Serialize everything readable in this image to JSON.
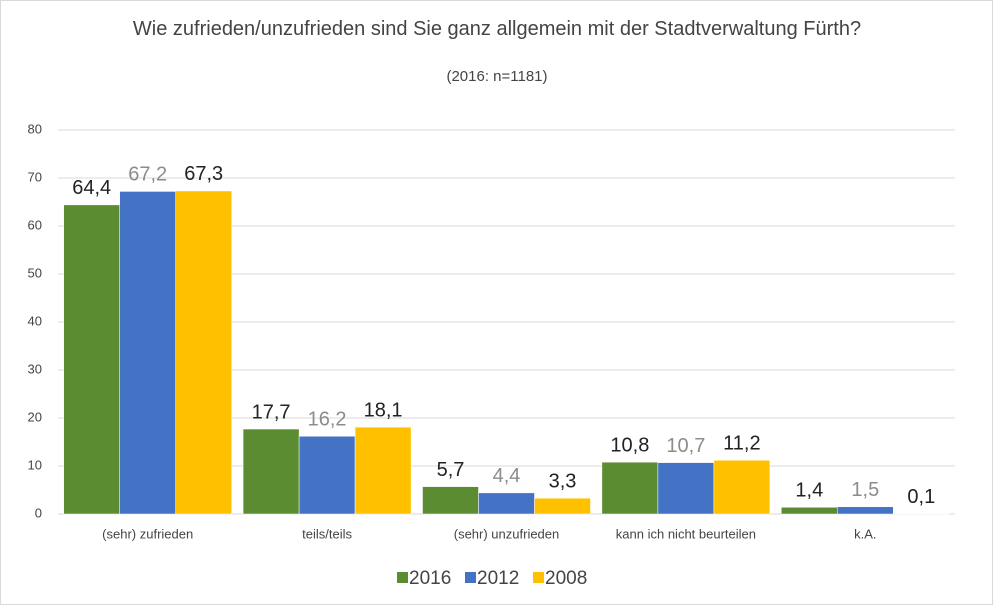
{
  "chart_data": {
    "type": "bar",
    "title": "Wie zufrieden/unzufrieden sind Sie ganz allgemein mit der Stadtverwaltung Fürth?",
    "subtitle": "(2016: n=1181)",
    "categories": [
      "(sehr) zufrieden",
      "teils/teils",
      "(sehr) unzufrieden",
      "kann ich nicht beurteilen",
      "k.A."
    ],
    "series": [
      {
        "name": "2016",
        "color": "#5b8c32",
        "label_color": "#222222",
        "values": [
          64.4,
          17.7,
          5.7,
          10.8,
          1.4
        ],
        "value_labels": [
          "64,4",
          "17,7",
          "5,7",
          "10,8",
          "1,4"
        ]
      },
      {
        "name": "2012",
        "color": "#4472c4",
        "label_color": "#8c8c8c",
        "values": [
          67.2,
          16.2,
          4.4,
          10.7,
          1.5
        ],
        "value_labels": [
          "67,2",
          "16,2",
          "4,4",
          "10,7",
          "1,5"
        ]
      },
      {
        "name": "2008",
        "color": "#ffc000",
        "label_color": "#222222",
        "values": [
          67.3,
          18.1,
          3.3,
          11.2,
          0.1
        ],
        "value_labels": [
          "67,3",
          "18,1",
          "3,3",
          "11,2",
          "0,1"
        ]
      }
    ],
    "ylim": [
      0,
      80
    ],
    "yticks": [
      0,
      10,
      20,
      30,
      40,
      50,
      60,
      70,
      80
    ],
    "grid": true,
    "legend": "bottom"
  }
}
